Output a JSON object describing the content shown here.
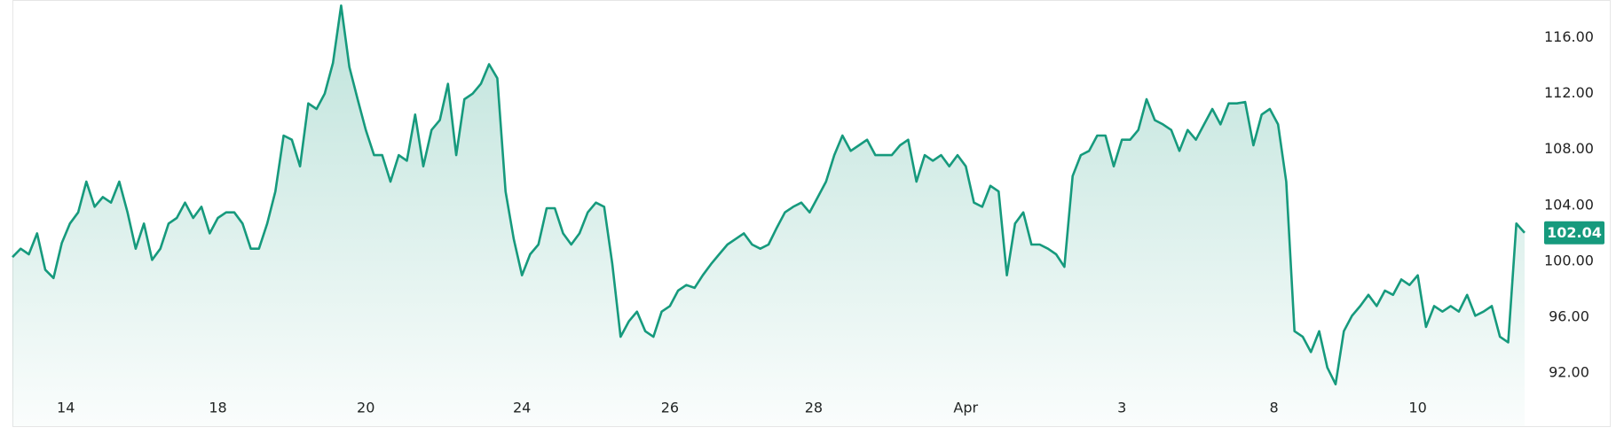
{
  "chart_data": {
    "type": "line",
    "series": [
      {
        "color": "#169a7d",
        "values": [
          100.3,
          100.9,
          100.5,
          102,
          99.4,
          98.8,
          101.3,
          102.7,
          103.5,
          105.7,
          103.9,
          104.6,
          104.2,
          105.7,
          103.5,
          100.9,
          102.7,
          100.1,
          100.9,
          102.7,
          103.1,
          104.2,
          103.1,
          103.9,
          102,
          103.1,
          103.5,
          103.5,
          102.7,
          100.9,
          100.9,
          102.7,
          105,
          109,
          108.7,
          106.8,
          111.3,
          110.9,
          112,
          114.2,
          118.3,
          113.9,
          111.6,
          109.4,
          107.6,
          107.6,
          105.7,
          107.6,
          107.2,
          110.5,
          106.8,
          109.4,
          110.1,
          112.7,
          107.6,
          111.6,
          112,
          112.7,
          114.1,
          113.1,
          105,
          101.6,
          99,
          100.5,
          101.2,
          103.8,
          103.8,
          102,
          101.2,
          102,
          103.5,
          104.2,
          103.9,
          99.8,
          94.6,
          95.7,
          96.4,
          95,
          94.6,
          96.4,
          96.8,
          97.9,
          98.3,
          98.1,
          99,
          99.8,
          100.5,
          101.2,
          101.6,
          102,
          101.2,
          100.9,
          101.2,
          102.4,
          103.5,
          103.9,
          104.2,
          103.5,
          104.6,
          105.7,
          107.6,
          109,
          107.9,
          108.3,
          108.7,
          107.6,
          107.6,
          107.6,
          108.3,
          108.7,
          105.7,
          107.6,
          107.2,
          107.6,
          106.8,
          107.6,
          106.8,
          104.2,
          103.9,
          105.4,
          105,
          99,
          102.7,
          103.5,
          101.2,
          101.2,
          100.9,
          100.5,
          99.6,
          106.1,
          107.6,
          107.9,
          109,
          109,
          106.8,
          108.7,
          108.7,
          109.4,
          111.6,
          110.1,
          109.8,
          109.4,
          107.9,
          109.4,
          108.7,
          109.8,
          110.9,
          109.8,
          111.3,
          111.3,
          111.4,
          108.3,
          110.5,
          110.9,
          109.8,
          105.7,
          95,
          94.6,
          93.5,
          95,
          92.4,
          91.2,
          95,
          96.1,
          96.8,
          97.6,
          96.8,
          97.9,
          97.6,
          98.7,
          98.3,
          99,
          95.3,
          96.8,
          96.4,
          96.8,
          96.4,
          97.6,
          96.1,
          96.4,
          96.8,
          94.6,
          94.2,
          102.7,
          102.04
        ]
      }
    ],
    "xlim": [
      0,
      184
    ],
    "xticks": [
      {
        "value": 6.5,
        "label": "14"
      },
      {
        "value": 25,
        "label": "18"
      },
      {
        "value": 43,
        "label": "20"
      },
      {
        "value": 62,
        "label": "24"
      },
      {
        "value": 80,
        "label": "26"
      },
      {
        "value": 97.5,
        "label": "28"
      },
      {
        "value": 116,
        "label": "Apr"
      },
      {
        "value": 135,
        "label": "3"
      },
      {
        "value": 153.5,
        "label": "8"
      },
      {
        "value": 171,
        "label": "10"
      }
    ],
    "ylim": [
      88.2,
      118.7
    ],
    "yticks": [
      {
        "value": 92,
        "label": "92.00"
      },
      {
        "value": 96,
        "label": "96.00"
      },
      {
        "value": 100,
        "label": "100.00"
      },
      {
        "value": 104,
        "label": "104.00"
      },
      {
        "value": 108,
        "label": "108.00"
      },
      {
        "value": 112,
        "label": "112.00"
      },
      {
        "value": 116,
        "label": "116.00"
      }
    ],
    "current_price": {
      "value": 102.04,
      "label": "102.04"
    }
  }
}
